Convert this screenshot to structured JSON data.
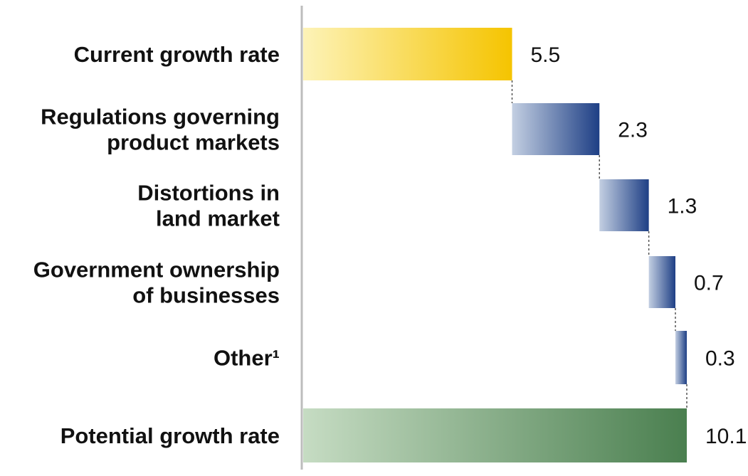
{
  "chart_data": {
    "type": "bar",
    "subtype": "waterfall",
    "categories": [
      [
        "Current growth rate"
      ],
      [
        "Regulations governing",
        "product markets"
      ],
      [
        "Distortions in",
        "land market"
      ],
      [
        "Government ownership",
        "of businesses"
      ],
      [
        "Other¹"
      ],
      [
        "Potential growth rate"
      ]
    ],
    "values": [
      5.5,
      2.3,
      1.3,
      0.7,
      0.3,
      10.1
    ],
    "value_labels": [
      "5.5",
      "2.3",
      "1.3",
      "0.7",
      "0.3",
      "10.1"
    ],
    "kinds": [
      "start",
      "increment",
      "increment",
      "increment",
      "increment",
      "total"
    ],
    "xlim": [
      0,
      10.1
    ],
    "grid": false,
    "colors": {
      "start_light": "#fdf3b8",
      "start_dark": "#f5c400",
      "increment_light": "#c3cfe2",
      "increment_dark": "#1e3f85",
      "total_light": "#c6dcc3",
      "total_dark": "#4a7f4f"
    }
  }
}
